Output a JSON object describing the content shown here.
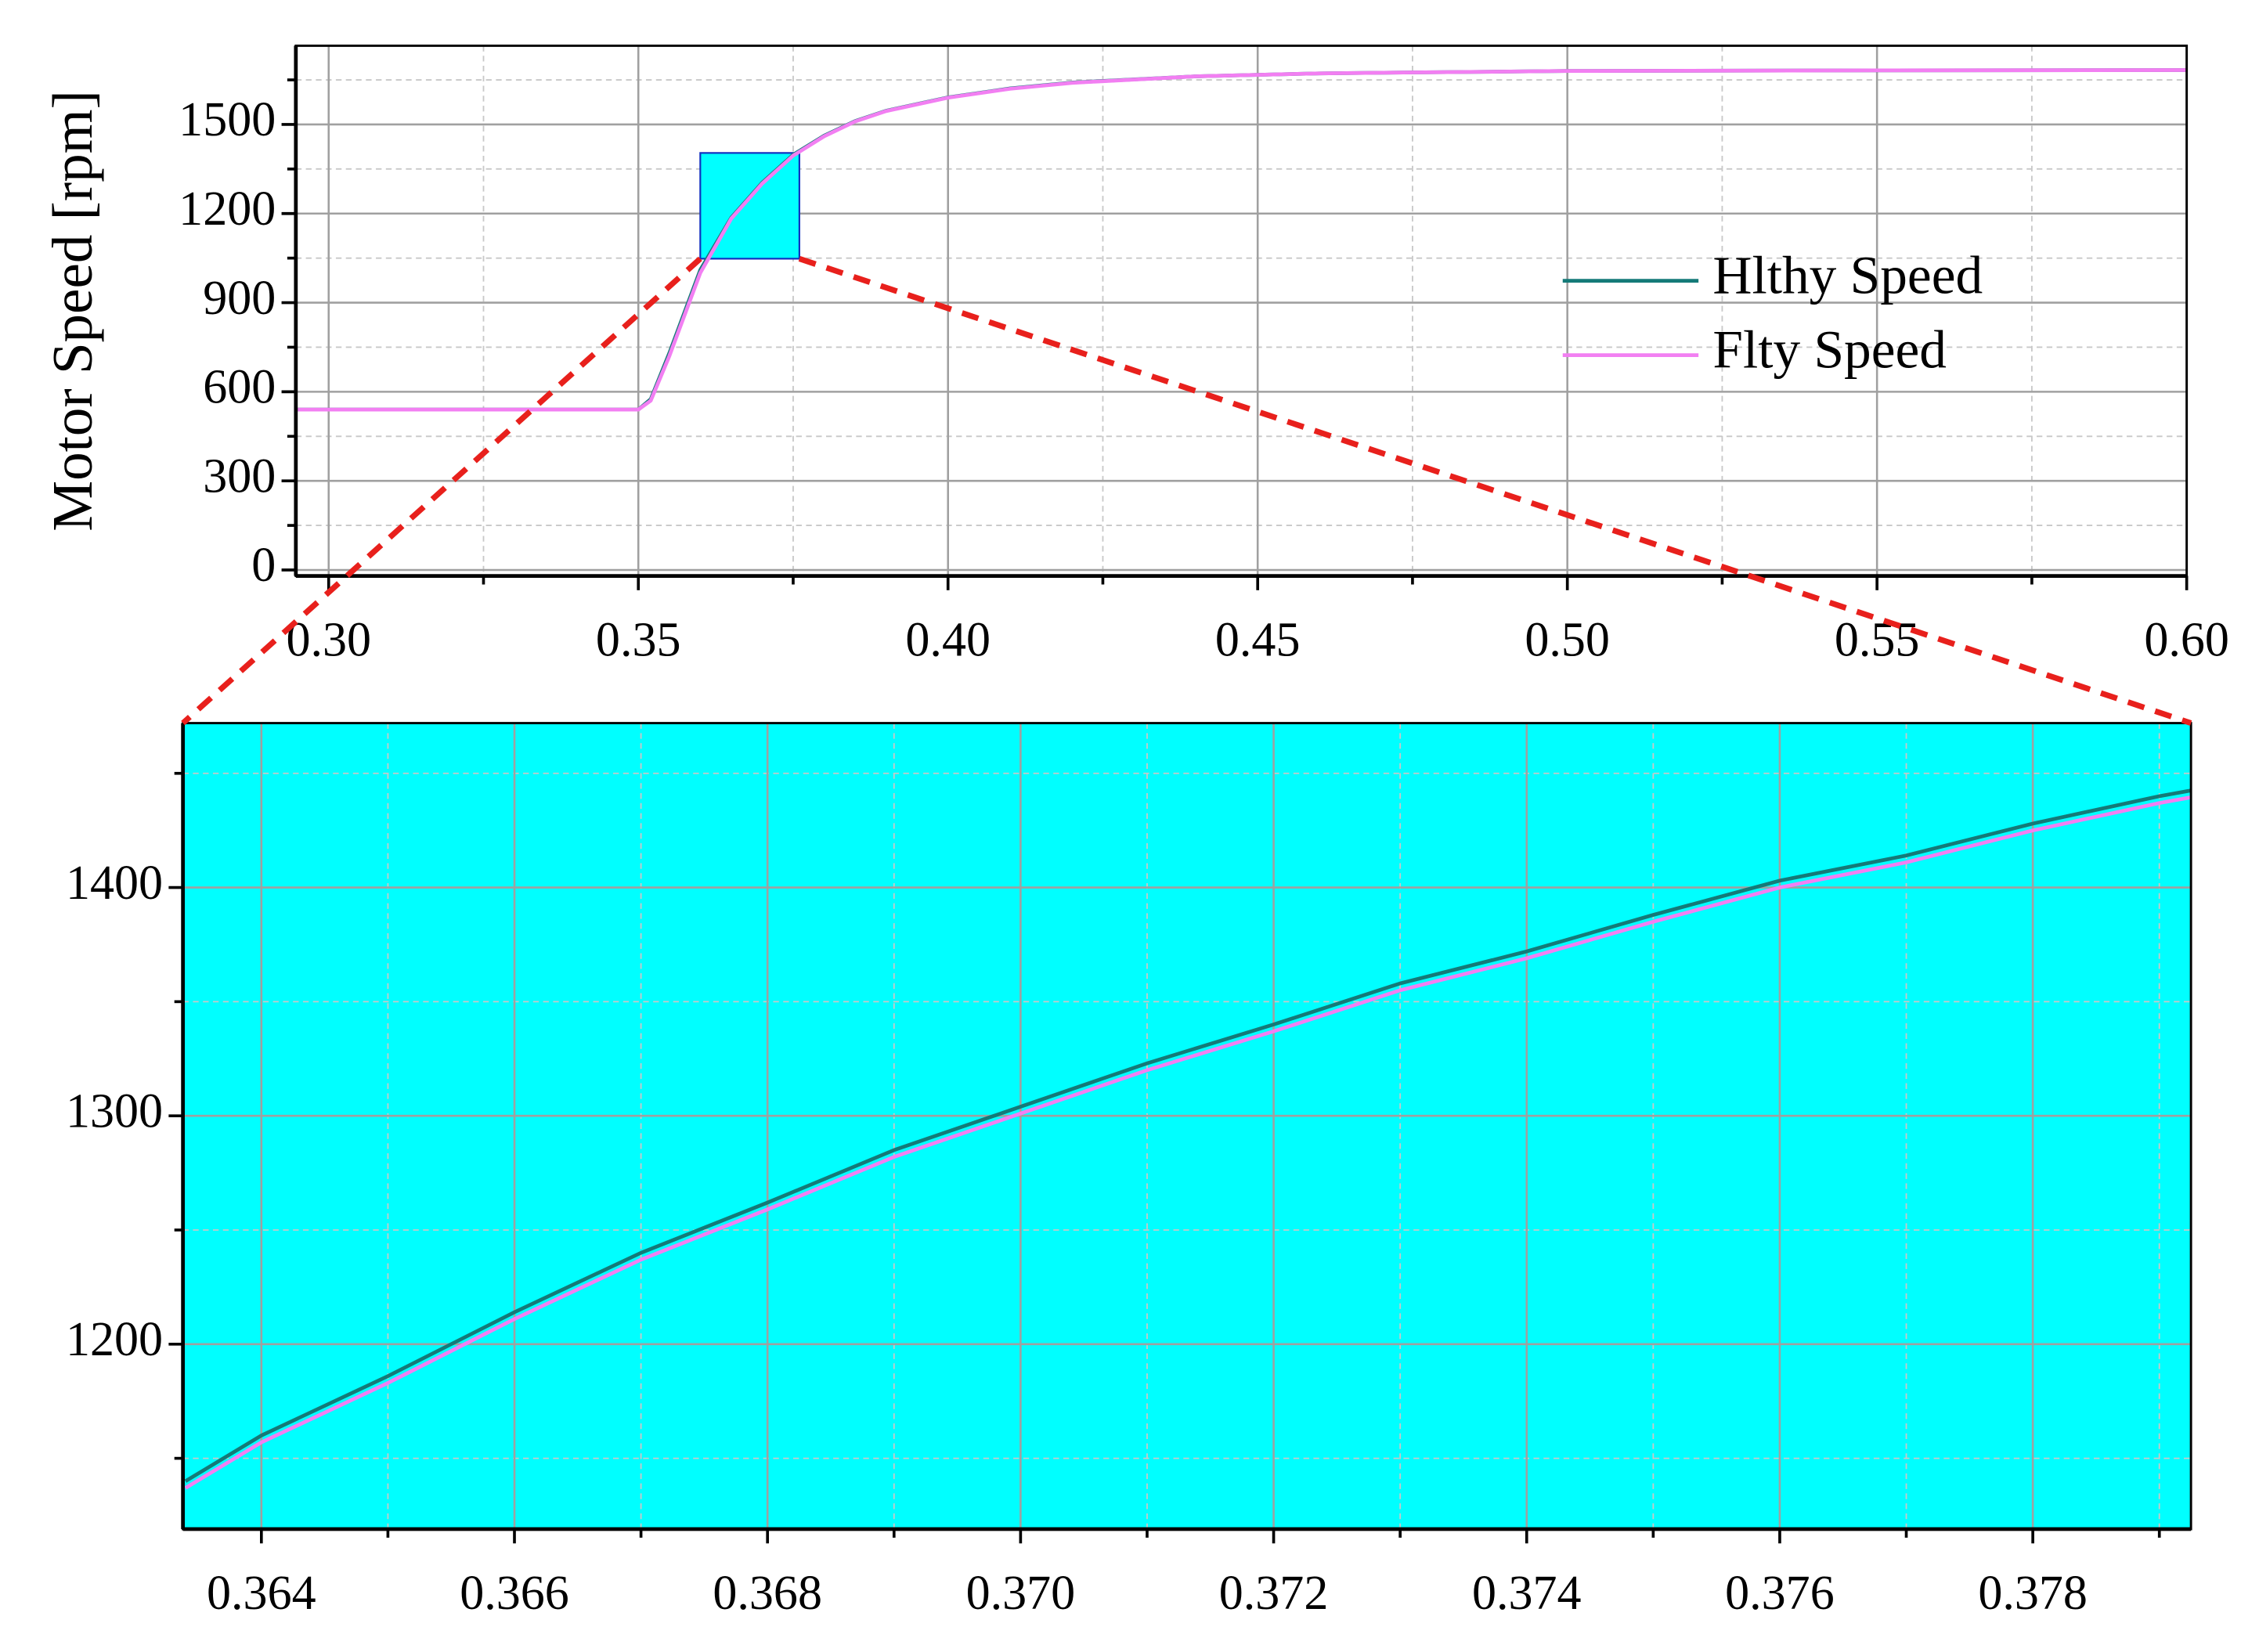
{
  "chart_data": [
    {
      "type": "line",
      "y_label": "Motor Speed [rpm]",
      "x": [
        0.295,
        0.3,
        0.34,
        0.35,
        0.352,
        0.355,
        0.36,
        0.365,
        0.37,
        0.375,
        0.38,
        0.385,
        0.39,
        0.4,
        0.41,
        0.42,
        0.44,
        0.46,
        0.5,
        0.55,
        0.6
      ],
      "series": [
        {
          "name": "Hlthy Speed",
          "color": "#147a78",
          "values": [
            540,
            540,
            540,
            540,
            575,
            730,
            1010,
            1186,
            1304,
            1398,
            1462,
            1511,
            1546,
            1591,
            1621,
            1641,
            1662,
            1672,
            1680,
            1682,
            1683
          ]
        },
        {
          "name": "Flty Speed",
          "color": "#f27ff2",
          "values": [
            540,
            540,
            540,
            540,
            570,
            720,
            1000,
            1183,
            1301,
            1395,
            1460,
            1510,
            1545,
            1590,
            1620,
            1640,
            1662,
            1672,
            1680,
            1682,
            1683
          ]
        }
      ],
      "xlim": [
        0.2947,
        0.6
      ],
      "ylim": [
        -20,
        1765
      ],
      "xticks": [
        {
          "value": 0.3,
          "label": "0.30"
        },
        0.35,
        {
          "value": 0.4,
          "label": "0.40"
        },
        0.45,
        {
          "value": 0.5,
          "label": "0.50"
        },
        0.55,
        {
          "value": 0.6,
          "label": "0.60"
        }
      ],
      "yticks": [
        0,
        300,
        600,
        900,
        1200,
        1500
      ],
      "grid": true,
      "legend": "center right",
      "background": "#ffffff",
      "zoom_box": {
        "xlim": [
          0.36,
          0.376
        ],
        "ylim": [
          1048,
          1404
        ],
        "color": "#00ffff"
      }
    },
    {
      "type": "line",
      "x": [
        0.3634,
        0.364,
        0.365,
        0.366,
        0.367,
        0.368,
        0.369,
        0.37,
        0.371,
        0.372,
        0.373,
        0.374,
        0.375,
        0.376,
        0.377,
        0.378,
        0.379,
        0.3793
      ],
      "series": [
        {
          "name": "Hlthy Speed",
          "color": "#147a78",
          "values": [
            1140,
            1160,
            1186,
            1214,
            1240,
            1262,
            1285,
            1304,
            1323,
            1340,
            1358,
            1372,
            1388,
            1403,
            1414,
            1428,
            1440,
            1443
          ]
        },
        {
          "name": "Flty Speed",
          "color": "#f27ff2",
          "values": [
            1137,
            1157,
            1183,
            1211,
            1237,
            1259,
            1282,
            1301,
            1320,
            1337,
            1355,
            1369,
            1385,
            1400,
            1411,
            1425,
            1437,
            1440
          ]
        }
      ],
      "xlim": [
        0.36338,
        0.37925
      ],
      "ylim": [
        1119,
        1472
      ],
      "xticks": [
        0.364,
        0.366,
        0.368,
        {
          "value": 0.37,
          "label": "0.370"
        },
        0.372,
        0.374,
        0.376,
        0.378
      ],
      "yticks": [
        1200,
        1300,
        1400
      ],
      "grid": true,
      "background": "#00ffff"
    }
  ]
}
